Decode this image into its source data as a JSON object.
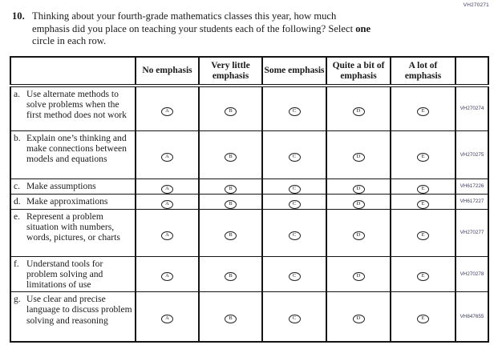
{
  "page": {
    "form_code": "VH270271"
  },
  "question": {
    "number": "10.",
    "line1": "Thinking about your fourth-grade mathematics classes this year, how much",
    "line2_prefix": "emphasis did you place on teaching your students each of the following? Select ",
    "line2_bold": "one",
    "line3": "circle in each row."
  },
  "table": {
    "column_headers": [
      "No emphasis",
      "Very little emphasis",
      "Some emphasis",
      "Quite a bit of emphasis",
      "A lot of emphasis"
    ],
    "bubble_letters": [
      "A",
      "B",
      "C",
      "D",
      "E"
    ],
    "rows": [
      {
        "letter": "a.",
        "text": "Use alternate methods to solve problems when the first method does not work",
        "code": "VH270274"
      },
      {
        "letter": "b.",
        "text": "Explain one’s thinking and make connections between models and equations",
        "code": "VH270275"
      },
      {
        "letter": "c.",
        "text": "Make assumptions",
        "code": "VH617226"
      },
      {
        "letter": "d.",
        "text": "Make approximations",
        "code": "VH617227"
      },
      {
        "letter": "e.",
        "text": "Represent a problem situation with numbers, words, pictures, or charts",
        "code": "VH270277"
      },
      {
        "letter": "f.",
        "text": "Understand tools for problem solving and limitations of use",
        "code": "VH270278"
      },
      {
        "letter": "g.",
        "text": "Use clear and precise language to discuss problem solving and reasoning",
        "code": "VH847655"
      }
    ],
    "ink_color": "#151515",
    "code_color": "#3b3b5e"
  }
}
